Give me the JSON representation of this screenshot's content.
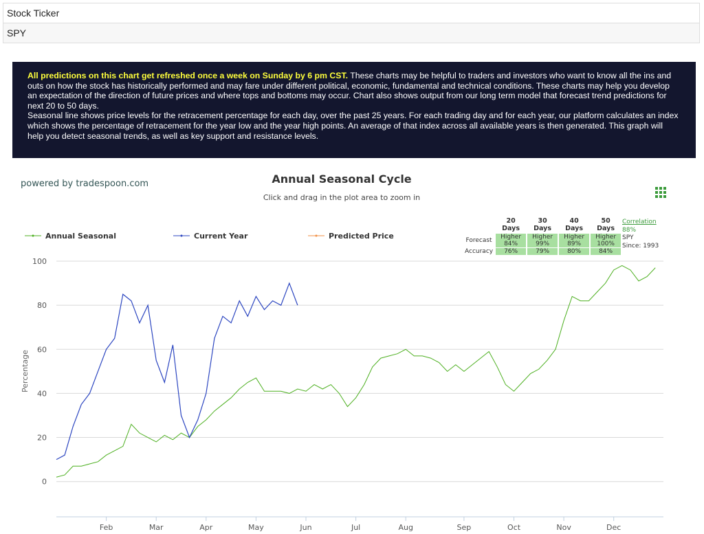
{
  "header": {
    "rows": [
      "Stock Ticker",
      "SPY"
    ]
  },
  "banner": {
    "highlight": "All predictions on this chart get refreshed once a week on Sunday by 6 pm CST.",
    "text": "These charts may be helpful to traders and investors who want to know all the ins and outs on how the stock has historically performed and may fare under different political, economic, fundamental and technical conditions. These charts may help you develop an expectation of the direction of future prices and where tops and bottoms may occur. Chart also shows output from our long term model that forecast trend predictions for next 20 to 50 days.",
    "text2": "Seasonal line shows price levels for the retracement percentage for each day, over the past 25 years. For each trading day and for each year, our platform calculates an index which shows the percentage of retracement for the year low and the year high points. An average of that index across all available years is then generated. This graph will help you detect seasonal trends, as well as key support and resistance levels."
  },
  "powered_by": "powered by tradespoon.com",
  "chart_data": {
    "type": "line",
    "title": "Annual Seasonal Cycle",
    "subtitle": "Click and drag in the plot area to zoom in",
    "y_label": "Percentage",
    "categories": [
      null,
      null,
      null,
      null,
      null,
      null,
      "Feb",
      null,
      null,
      null,
      null,
      null,
      "Mar",
      null,
      null,
      null,
      null,
      null,
      "Apr",
      null,
      null,
      null,
      null,
      null,
      "May",
      null,
      null,
      null,
      null,
      null,
      "Jun",
      null,
      null,
      null,
      null,
      null,
      "Jul",
      null,
      null,
      null,
      null,
      null,
      "Aug",
      null,
      null,
      null,
      null,
      null,
      null,
      "Sep",
      null,
      null,
      null,
      null,
      null,
      "Oct",
      null,
      null,
      null,
      null,
      null,
      "Nov",
      null,
      null,
      null,
      null,
      null,
      "Dec",
      null,
      null,
      null,
      null,
      null
    ],
    "series": [
      {
        "name": "Annual Seasonal",
        "color": "#4caf1f",
        "values": [
          2,
          3,
          7,
          7,
          8,
          9,
          12,
          14,
          16,
          26,
          22,
          20,
          18,
          21,
          19,
          22,
          20,
          25,
          28,
          32,
          35,
          38,
          42,
          45,
          47,
          41,
          41,
          41,
          40,
          42,
          41,
          44,
          42,
          44,
          40,
          34,
          38,
          44,
          52,
          56,
          57,
          58,
          60,
          57,
          57,
          56,
          54,
          50,
          53,
          50,
          53,
          56,
          59,
          52,
          44,
          41,
          45,
          49,
          51,
          55,
          60,
          73,
          84,
          82,
          82,
          86,
          90,
          96,
          98,
          96,
          91,
          93,
          97
        ]
      },
      {
        "name": "Current Year",
        "color": "#2b45c0",
        "values": [
          10,
          12,
          25,
          35,
          40,
          50,
          60,
          65,
          85,
          82,
          72,
          80,
          55,
          45,
          62,
          30,
          20,
          28,
          40,
          65,
          75,
          72,
          82,
          75,
          84,
          78,
          82,
          80,
          90,
          80,
          null,
          null,
          null,
          null,
          null,
          null,
          null,
          null,
          null,
          null,
          null,
          null,
          null,
          null,
          null,
          null,
          null,
          null,
          null,
          null,
          null,
          null,
          null,
          null,
          null,
          null,
          null,
          null,
          null,
          null,
          null,
          null,
          null,
          null,
          null,
          null,
          null,
          null,
          null,
          null,
          null,
          null,
          null
        ]
      },
      {
        "name": "Predicted Price",
        "color": "#f28f43",
        "values": [
          null,
          null,
          null,
          null,
          null,
          null,
          null,
          null,
          null,
          null,
          null,
          null,
          null,
          null,
          null,
          null,
          null,
          null,
          null,
          null,
          null,
          null,
          null,
          null,
          null,
          null,
          null,
          null,
          null,
          null,
          null,
          null,
          null,
          null,
          null,
          null,
          null,
          null,
          null,
          null,
          null,
          null,
          null,
          null,
          null,
          null,
          null,
          null,
          null,
          null,
          null,
          null,
          null,
          null,
          null,
          null,
          null,
          null,
          null,
          null,
          null,
          null,
          null,
          null,
          null,
          null,
          null,
          null,
          null,
          null,
          null,
          null,
          null
        ]
      }
    ],
    "ylim": [
      -16,
      100
    ],
    "yticks": [
      0,
      20,
      40,
      60,
      80,
      100
    ],
    "grid": true
  },
  "forecast_table": {
    "columns": [
      "20 Days",
      "30 Days",
      "40 Days",
      "50 Days"
    ],
    "forecast_label": "Forecast",
    "accuracy_label": "Accuracy",
    "forecast": [
      {
        "direction": "Higher",
        "pct": "84%"
      },
      {
        "direction": "Higher",
        "pct": "99%"
      },
      {
        "direction": "Higher",
        "pct": "89%"
      },
      {
        "direction": "Higher",
        "pct": "100%"
      }
    ],
    "accuracy": [
      "76%",
      "79%",
      "80%",
      "84%"
    ],
    "correlation": {
      "label": "Correlation",
      "value": "88%",
      "ticker": "SPY",
      "since": "Since: 1993"
    }
  }
}
